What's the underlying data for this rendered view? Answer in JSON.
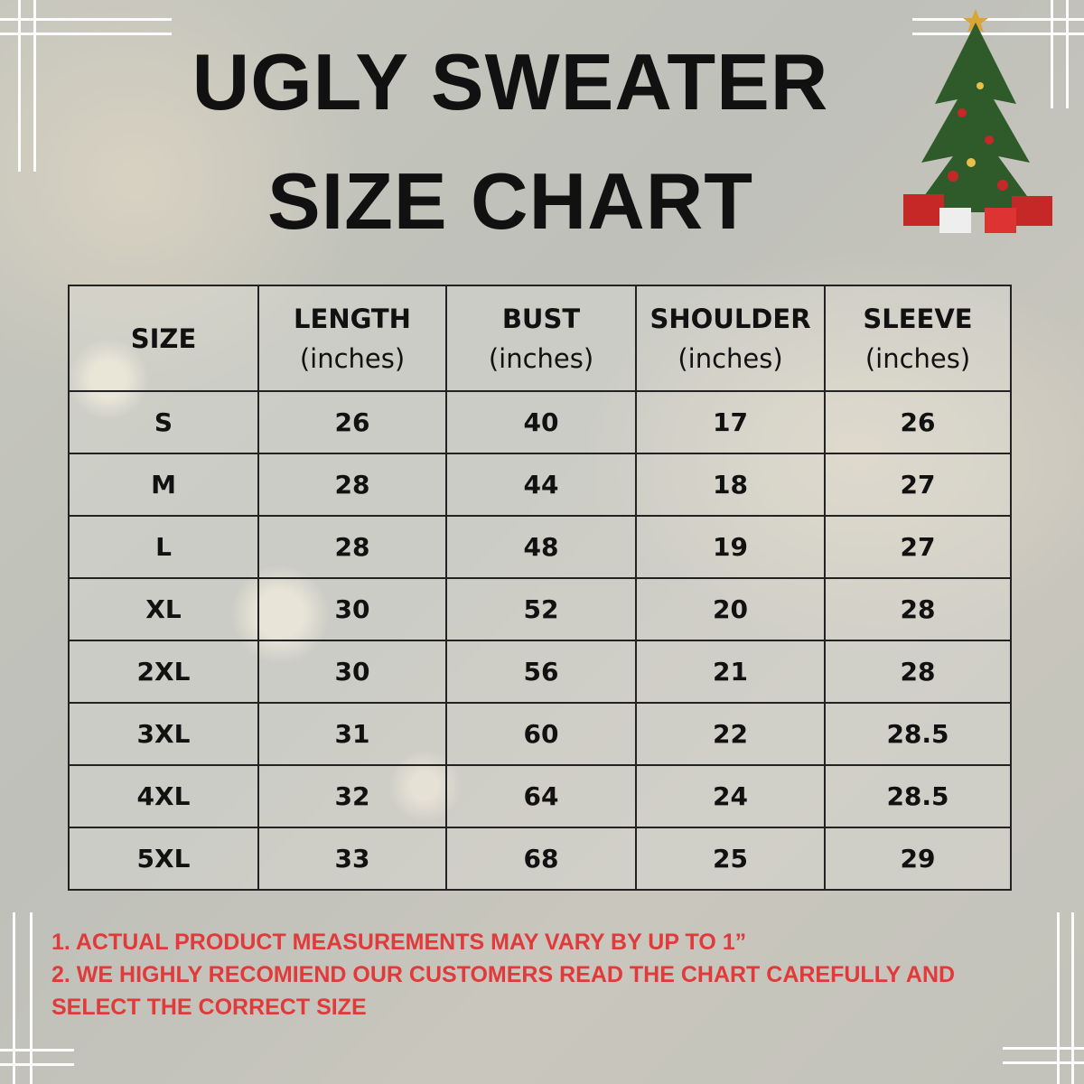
{
  "title_line1": "UGLY SWEATER",
  "title_line2": "SIZE CHART",
  "chart_data": {
    "type": "table",
    "columns": [
      {
        "name": "SIZE",
        "unit": ""
      },
      {
        "name": "LENGTH",
        "unit": "(inches)"
      },
      {
        "name": "BUST",
        "unit": "(inches)"
      },
      {
        "name": "SHOULDER",
        "unit": "(inches)"
      },
      {
        "name": "SLEEVE",
        "unit": "(inches)"
      }
    ],
    "rows": [
      [
        "S",
        "26",
        "40",
        "17",
        "26"
      ],
      [
        "M",
        "28",
        "44",
        "18",
        "27"
      ],
      [
        "L",
        "28",
        "48",
        "19",
        "27"
      ],
      [
        "XL",
        "30",
        "52",
        "20",
        "28"
      ],
      [
        "2XL",
        "30",
        "56",
        "21",
        "28"
      ],
      [
        "3XL",
        "31",
        "60",
        "22",
        "28.5"
      ],
      [
        "4XL",
        "32",
        "64",
        "24",
        "28.5"
      ],
      [
        "5XL",
        "33",
        "68",
        "25",
        "29"
      ]
    ]
  },
  "notes": [
    "1. ACTUAL PRODUCT MEASUREMENTS MAY VARY BY UP TO 1”",
    "2. WE HIGHLY RECOMIEND OUR CUSTOMERS READ THE CHART CAREFULLY AND SELECT THE CORRECT SIZE"
  ],
  "colors": {
    "note": "#e03a3a",
    "text": "#111111"
  },
  "decoration": "christmas-tree-icon"
}
